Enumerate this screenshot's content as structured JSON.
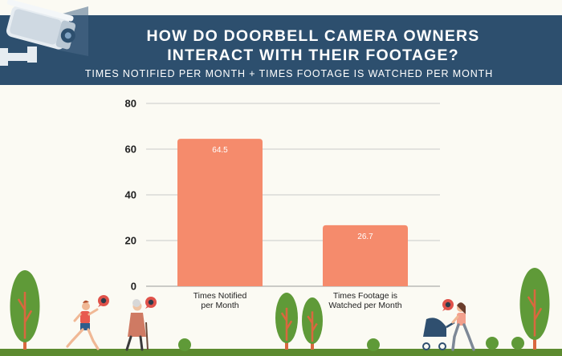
{
  "header": {
    "title_line1": "HOW DO DOORBELL CAMERA OWNERS",
    "title_line2": "INTERACT WITH THEIR FOOTAGE?",
    "subtitle": "TIMES NOTIFIED PER MONTH + TIMES FOOTAGE IS WATCHED PER MONTH"
  },
  "colors": {
    "banner": "#2d4f6e",
    "bar": "#f58b6c",
    "background": "#fbfaf3",
    "grid": "#c9c9c9",
    "ground": "#5c8a2f"
  },
  "chart_data": {
    "type": "bar",
    "title": "",
    "xlabel": "",
    "ylabel": "",
    "categories": [
      [
        "Times Notified",
        "per Month"
      ],
      [
        "Times Footage is",
        "Watched per Month"
      ]
    ],
    "values": [
      64.5,
      26.7
    ],
    "value_labels": [
      "64.5",
      "26.7"
    ],
    "ylim": [
      0,
      80
    ],
    "yticks": [
      0,
      20,
      40,
      60,
      80
    ],
    "ytick_labels": [
      "0",
      "20",
      "40",
      "60",
      "80"
    ],
    "grid": true,
    "legend": "none"
  },
  "decorations": {
    "icons": [
      "security-camera-icon",
      "tree-icon",
      "bush-icon",
      "runner-figure-icon",
      "elderly-walker-figure-icon",
      "stroller-parent-figure-icon",
      "camera-notification-badge-icon"
    ]
  }
}
